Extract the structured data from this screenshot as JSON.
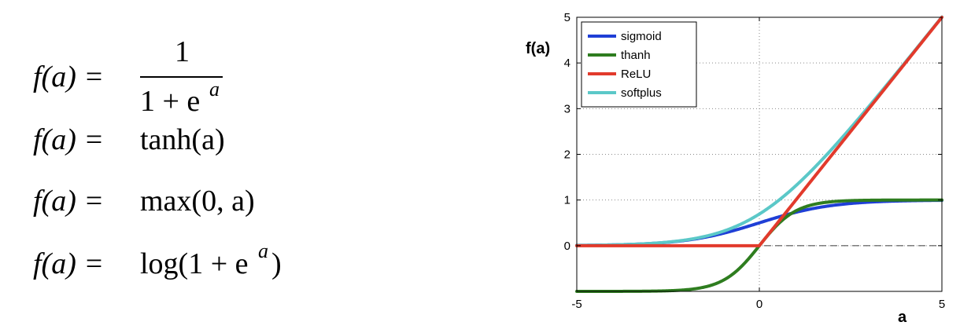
{
  "formulas": {
    "sigmoid": {
      "lhs": "f(a) =",
      "numerator": "1",
      "denominator": "1 + e",
      "exponent": "a"
    },
    "tanh": {
      "lhs": "f(a) =",
      "rhs": "tanh(a)"
    },
    "relu": {
      "lhs": "f(a) =",
      "rhs": "max(0, a)"
    },
    "softplus": {
      "lhs": "f(a) =",
      "rhs_before": "log(1 + e",
      "exponent": "a",
      "rhs_after": ")"
    }
  },
  "chart_data": {
    "type": "line",
    "xlabel": "a",
    "ylabel": "f(a)",
    "xlim": [
      -5,
      5
    ],
    "ylim": [
      -1,
      5
    ],
    "xticks": [
      -5,
      0,
      5
    ],
    "yticks": [
      0,
      1,
      2,
      3,
      4,
      5
    ],
    "grid": true,
    "legend_position": "top-left",
    "reference_line": {
      "y": 0,
      "style": "dashed"
    },
    "series": [
      {
        "name": "sigmoid",
        "color": "#1f3fd6",
        "function": "sigmoid",
        "x": [
          -5,
          -4,
          -3,
          -2,
          -1,
          0,
          1,
          2,
          3,
          4,
          5
        ],
        "y": [
          0.007,
          0.018,
          0.047,
          0.119,
          0.269,
          0.5,
          0.731,
          0.881,
          0.953,
          0.982,
          0.993
        ]
      },
      {
        "name": "thanh",
        "color": "#2e7d1f",
        "function": "tanh",
        "x": [
          -5,
          -4,
          -3,
          -2,
          -1,
          0,
          1,
          2,
          3,
          4,
          5
        ],
        "y": [
          -1.0,
          -0.999,
          -0.995,
          -0.964,
          -0.762,
          0,
          0.762,
          0.964,
          0.995,
          0.999,
          1.0
        ]
      },
      {
        "name": "ReLU",
        "color": "#e23a2c",
        "function": "relu",
        "x": [
          -5,
          -4,
          -3,
          -2,
          -1,
          0,
          1,
          2,
          3,
          4,
          5
        ],
        "y": [
          0,
          0,
          0,
          0,
          0,
          0,
          1,
          2,
          3,
          4,
          5
        ]
      },
      {
        "name": "softplus",
        "color": "#5bc8c8",
        "function": "softplus",
        "x": [
          -5,
          -4,
          -3,
          -2,
          -1,
          0,
          1,
          2,
          3,
          4,
          5
        ],
        "y": [
          0.007,
          0.018,
          0.049,
          0.127,
          0.313,
          0.693,
          1.313,
          2.127,
          3.049,
          4.018,
          5.007
        ]
      }
    ]
  }
}
